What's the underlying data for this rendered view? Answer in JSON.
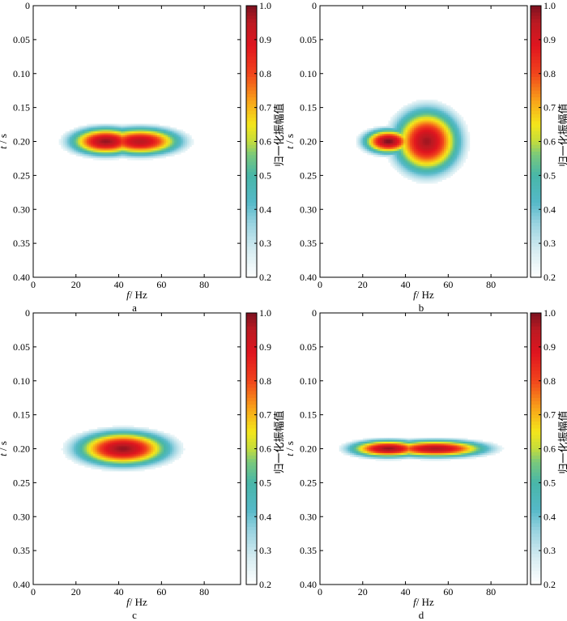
{
  "chart_data": [
    {
      "type": "heatmap",
      "panel_label": "a",
      "xlabel_italic": "f",
      "xlabel_unit": "/ Hz",
      "ylabel_italic": "t",
      "ylabel_unit": "/ s",
      "xlim": [
        0,
        97
      ],
      "ylim": [
        0.4,
        0
      ],
      "x_ticks": [
        "0",
        "20",
        "40",
        "60",
        "80"
      ],
      "y_ticks": [
        "0",
        "0.05",
        "0.10",
        "0.15",
        "0.20",
        "0.25",
        "0.30",
        "0.35",
        "0.40"
      ],
      "colorbar": {
        "label": "归一化振幅值",
        "range": [
          0.2,
          1.0
        ],
        "ticks": [
          "1.0",
          "0.9",
          "0.8",
          "0.7",
          "0.6",
          "0.5",
          "0.4",
          "0.3",
          "0.2"
        ]
      },
      "components": [
        {
          "f": 34,
          "t": 0.2,
          "sf": 13,
          "st": 0.016,
          "amp": 0.98
        },
        {
          "f": 50,
          "t": 0.2,
          "sf": 15,
          "st": 0.016,
          "amp": 0.95
        }
      ],
      "extent": {
        "f_min": 0,
        "f_max": 86,
        "t_min": 0.16,
        "t_max": 0.24
      }
    },
    {
      "type": "heatmap",
      "panel_label": "b",
      "xlabel_italic": "f",
      "xlabel_unit": "/ Hz",
      "ylabel_italic": "t",
      "ylabel_unit": "/ s",
      "xlim": [
        0,
        97
      ],
      "ylim": [
        0.4,
        0
      ],
      "x_ticks": [
        "0",
        "20",
        "40",
        "60",
        "80"
      ],
      "y_ticks": [
        "0",
        "0.05",
        "0.10",
        "0.15",
        "0.20",
        "0.25",
        "0.30",
        "0.35",
        "0.40"
      ],
      "colorbar": {
        "label": "归一化振幅值",
        "range": [
          0.2,
          1.0
        ],
        "ticks": [
          "1.0",
          "0.9",
          "0.8",
          "0.7",
          "0.6",
          "0.5",
          "0.4",
          "0.3",
          "0.2"
        ]
      },
      "components": [
        {
          "f": 32,
          "t": 0.2,
          "sf": 9,
          "st": 0.014,
          "amp": 1.0
        },
        {
          "f": 50,
          "t": 0.2,
          "sf": 12,
          "st": 0.037,
          "amp": 0.97
        }
      ],
      "extent": {
        "f_min": 10,
        "f_max": 82,
        "t_min": 0.13,
        "t_max": 0.27
      }
    },
    {
      "type": "heatmap",
      "panel_label": "c",
      "xlabel_italic": "f",
      "xlabel_unit": "/ Hz",
      "ylabel_italic": "t",
      "ylabel_unit": "/ s",
      "xlim": [
        0,
        97
      ],
      "ylim": [
        0.4,
        0
      ],
      "x_ticks": [
        "0",
        "20",
        "40",
        "60",
        "80"
      ],
      "y_ticks": [
        "0",
        "0.05",
        "0.10",
        "0.15",
        "0.20",
        "0.25",
        "0.30",
        "0.35",
        "0.40"
      ],
      "colorbar": {
        "label": "归一化振幅值",
        "range": [
          0.2,
          1.0
        ],
        "ticks": [
          "1.0",
          "0.9",
          "0.8",
          "0.7",
          "0.6",
          "0.5",
          "0.4",
          "0.3",
          "0.2"
        ]
      },
      "components": [
        {
          "f": 42,
          "t": 0.2,
          "sf": 17,
          "st": 0.02,
          "amp": 0.98
        }
      ],
      "extent": {
        "f_min": 10,
        "f_max": 81,
        "t_min": 0.16,
        "t_max": 0.24
      }
    },
    {
      "type": "heatmap",
      "panel_label": "d",
      "xlabel_italic": "f",
      "xlabel_unit": "/ Hz",
      "ylabel_italic": "t",
      "ylabel_unit": "/ s",
      "xlim": [
        0,
        97
      ],
      "ylim": [
        0.4,
        0
      ],
      "x_ticks": [
        "0",
        "20",
        "40",
        "60",
        "80"
      ],
      "y_ticks": [
        "0",
        "0.05",
        "0.10",
        "0.15",
        "0.20",
        "0.25",
        "0.30",
        "0.35",
        "0.40"
      ],
      "colorbar": {
        "label": "归一化振幅值",
        "range": [
          0.2,
          1.0
        ],
        "ticks": [
          "1.0",
          "0.9",
          "0.8",
          "0.7",
          "0.6",
          "0.5",
          "0.4",
          "0.3",
          "0.2"
        ]
      },
      "components": [
        {
          "f": 32,
          "t": 0.2,
          "sf": 14,
          "st": 0.01,
          "amp": 0.98
        },
        {
          "f": 54,
          "t": 0.2,
          "sf": 19,
          "st": 0.01,
          "amp": 0.96
        }
      ],
      "extent": {
        "f_min": 0,
        "f_max": 95,
        "t_min": 0.17,
        "t_max": 0.23
      }
    }
  ],
  "colormap": {
    "stops": [
      [
        0.2,
        "#ffffff"
      ],
      [
        0.28,
        "#d5ecf1"
      ],
      [
        0.36,
        "#97d2e0"
      ],
      [
        0.42,
        "#55b9c8"
      ],
      [
        0.5,
        "#48b6a8"
      ],
      [
        0.56,
        "#79c97c"
      ],
      [
        0.6,
        "#c4dc3c"
      ],
      [
        0.65,
        "#f4e61b"
      ],
      [
        0.72,
        "#f8a21a"
      ],
      [
        0.8,
        "#f1441c"
      ],
      [
        0.88,
        "#e0151f"
      ],
      [
        0.95,
        "#bb1a22"
      ],
      [
        1.0,
        "#7c1120"
      ]
    ]
  }
}
